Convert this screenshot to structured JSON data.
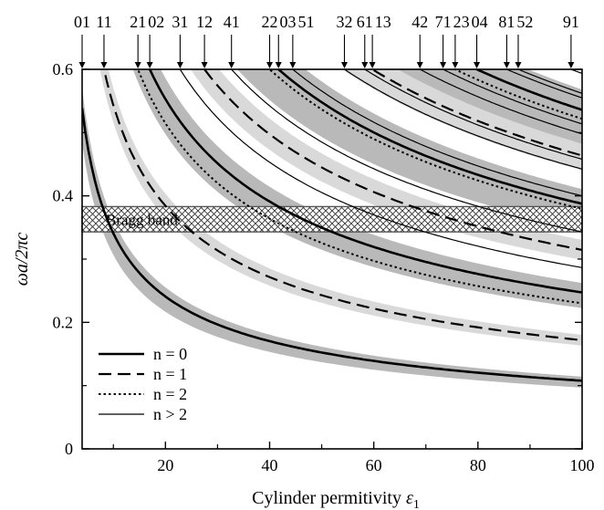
{
  "chart_data": {
    "type": "line",
    "xlabel": "Cylinder permitivity",
    "xlabel_symbol": "ε",
    "xlabel_sub": "1",
    "ylabel": "ωa/2πc",
    "xlim": [
      4,
      100
    ],
    "ylim": [
      0,
      0.6
    ],
    "x_ticks": [
      20,
      40,
      60,
      80,
      100
    ],
    "x_tick_labels": [
      "20",
      "40",
      "60",
      "80",
      "100"
    ],
    "y_ticks": [
      0,
      0.2,
      0.4,
      0.6
    ],
    "y_tick_labels": [
      "0",
      "0.2",
      "0.4",
      "0.6"
    ],
    "band": {
      "label": "Bragg band",
      "y_range": [
        0.343,
        0.383
      ]
    },
    "legend": {
      "position": "bottom-left",
      "entries": [
        {
          "style": "solid-thick",
          "label": "n = 0"
        },
        {
          "style": "dashed",
          "label": "n = 1"
        },
        {
          "style": "dotted",
          "label": "n = 2"
        },
        {
          "style": "solid-thin",
          "label": "n > 2"
        }
      ]
    },
    "series": [
      {
        "name": "01",
        "style": "solid-thick",
        "K": 1.077,
        "band": "dark"
      },
      {
        "name": "11",
        "style": "dashed",
        "K": 1.718,
        "band": "light"
      },
      {
        "name": "21",
        "style": "dotted",
        "K": 2.302,
        "band": "none"
      },
      {
        "name": "02",
        "style": "solid-thick",
        "K": 2.473,
        "band": "dark"
      },
      {
        "name": "31",
        "style": "solid-thin",
        "K": 2.866,
        "band": "none"
      },
      {
        "name": "12",
        "style": "dashed",
        "K": 3.146,
        "band": "light"
      },
      {
        "name": "41",
        "style": "solid-thin",
        "K": 3.43,
        "band": "none"
      },
      {
        "name": "22",
        "style": "dotted",
        "K": 3.795,
        "band": "none"
      },
      {
        "name": "03",
        "style": "solid-thick",
        "K": 3.875,
        "band": "dark"
      },
      {
        "name": "51",
        "style": "solid-thin",
        "K": 4.0,
        "band": "none"
      },
      {
        "name": "32",
        "style": "solid-thin",
        "K": 4.424,
        "band": "none"
      },
      {
        "name": "61",
        "style": "solid-thin",
        "K": 4.58,
        "band": "none"
      },
      {
        "name": "13",
        "style": "dashed",
        "K": 4.637,
        "band": "light"
      },
      {
        "name": "42",
        "style": "solid-thin",
        "K": 4.979,
        "band": "none"
      },
      {
        "name": "71",
        "style": "solid-thin",
        "K": 5.137,
        "band": "none"
      },
      {
        "name": "23",
        "style": "dotted",
        "K": 5.218,
        "band": "none"
      },
      {
        "name": "04",
        "style": "solid-thick",
        "K": 5.359,
        "band": "dark"
      },
      {
        "name": "81",
        "style": "solid-thin",
        "K": 5.549,
        "band": "none"
      },
      {
        "name": "52",
        "style": "solid-thin",
        "K": 5.62,
        "band": "none"
      },
      {
        "name": "91",
        "style": "solid-thin",
        "K": 5.936,
        "band": "none"
      }
    ],
    "series_note": "frequency = K / sqrt(eps); each curve labelled at the top where it reaches 0.6"
  }
}
